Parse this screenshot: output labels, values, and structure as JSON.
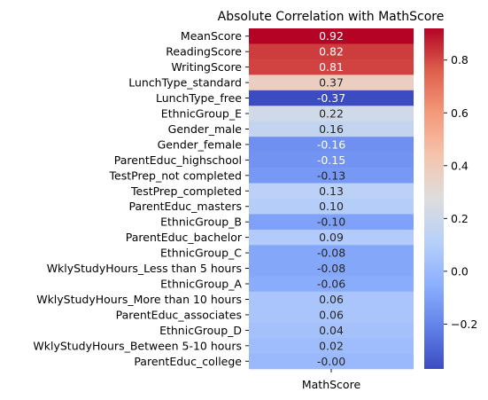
{
  "chart_data": {
    "type": "heatmap",
    "title": "Absolute Correlation with MathScore",
    "xlabel": "",
    "ylabel": "",
    "columns": [
      "MathScore"
    ],
    "rows": [
      "MeanScore",
      "ReadingScore",
      "WritingScore",
      "LunchType_standard",
      "LunchType_free",
      "EthnicGroup_E",
      "Gender_male",
      "Gender_female",
      "ParentEduc_highschool",
      "TestPrep_not completed",
      "TestPrep_completed",
      "ParentEduc_masters",
      "EthnicGroup_B",
      "ParentEduc_bachelor",
      "EthnicGroup_C",
      "WklyStudyHours_Less than 5 hours",
      "EthnicGroup_A",
      "WklyStudyHours_More than 10 hours",
      "ParentEduc_associates",
      "EthnicGroup_D",
      "WklyStudyHours_Between 5-10 hours",
      "ParentEduc_college"
    ],
    "values": [
      0.92,
      0.82,
      0.81,
      0.37,
      -0.37,
      0.22,
      0.16,
      -0.16,
      -0.15,
      -0.13,
      0.13,
      0.1,
      -0.1,
      0.09,
      -0.08,
      -0.08,
      -0.06,
      0.06,
      0.06,
      0.04,
      0.02,
      -0.0
    ],
    "annotations": [
      "0.92",
      "0.82",
      "0.81",
      "0.37",
      "-0.37",
      "0.22",
      "0.16",
      "-0.16",
      "-0.15",
      "-0.13",
      "0.13",
      "0.10",
      "-0.10",
      "0.09",
      "-0.08",
      "-0.08",
      "-0.06",
      "0.06",
      "0.06",
      "0.04",
      "0.02",
      "-0.00"
    ],
    "colormap": "coolwarm",
    "vmin": -0.37,
    "vmax": 0.92,
    "colorbar_ticks": [
      -0.2,
      0.0,
      0.2,
      0.4,
      0.6,
      0.8
    ],
    "colorbar_tick_labels": [
      "−0.2",
      "0.0",
      "0.2",
      "0.4",
      "0.6",
      "0.8"
    ],
    "legend": "colorbar-right"
  }
}
